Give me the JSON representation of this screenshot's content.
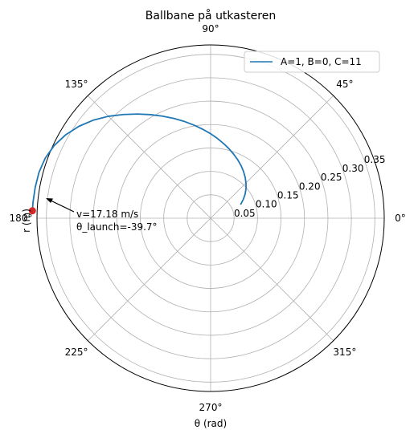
{
  "chart_data": {
    "type": "line",
    "projection": "polar",
    "title": "Ballbane på utkasteren",
    "xlabel": "θ (rad)",
    "ylabel": "r (m)",
    "rlim": [
      0,
      0.37
    ],
    "r_ticks": [
      0.05,
      0.1,
      0.15,
      0.2,
      0.25,
      0.3,
      0.35
    ],
    "r_tick_labels": [
      "0.05",
      "0.10",
      "0.15",
      "0.20",
      "0.25",
      "0.30",
      "0.35"
    ],
    "theta_ticks_deg": [
      0,
      45,
      90,
      135,
      180,
      225,
      270,
      315
    ],
    "theta_tick_labels": [
      "0°",
      "45°",
      "90°",
      "135°",
      "180°",
      "225°",
      "270°",
      "315°"
    ],
    "grid": true,
    "legend_position": "top-right",
    "series": [
      {
        "name": "A=1, B=0, C=11",
        "color": "#1f77b4",
        "theta_deg": [
          24.5,
          30,
          35,
          40,
          45,
          50,
          55,
          60,
          65,
          70,
          75,
          80,
          85,
          90,
          95,
          100,
          105,
          110,
          115,
          120,
          125,
          130,
          135,
          140,
          145,
          150,
          155,
          160,
          165,
          170,
          175,
          177.6
        ],
        "r": [
          0.0701,
          0.0805,
          0.0898,
          0.0985,
          0.1066,
          0.1144,
          0.1221,
          0.1297,
          0.1372,
          0.1449,
          0.1531,
          0.1615,
          0.1706,
          0.1804,
          0.1906,
          0.2017,
          0.2136,
          0.2264,
          0.2403,
          0.2553,
          0.2716,
          0.289,
          0.3078,
          0.3259,
          0.3423,
          0.3564,
          0.3676,
          0.375,
          0.3786,
          0.3795,
          0.38,
          0.3801
        ]
      }
    ],
    "end_marker": {
      "theta_deg": 177.6,
      "r": 0.3801,
      "color": "#d62728"
    },
    "annotation": {
      "lines": [
        "v=17.18 m/s",
        "θ_launch=-39.7°"
      ]
    }
  }
}
